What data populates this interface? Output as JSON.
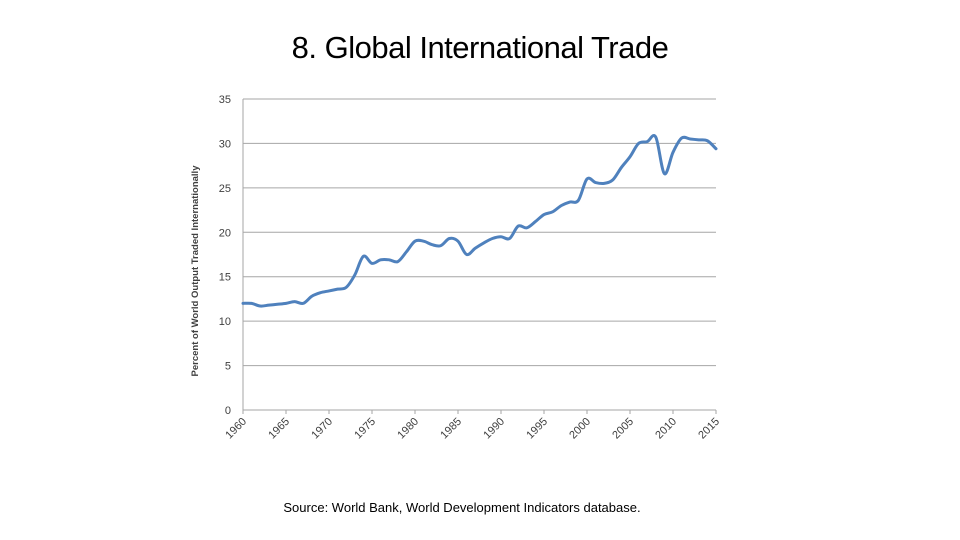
{
  "slide": {
    "title": "8. Global International Trade",
    "source": "Source: World Bank, World Development Indicators database."
  },
  "colors": {
    "line": "#4f81bd",
    "grid": "#a6a6a6"
  },
  "chart_data": {
    "type": "line",
    "ylabel": "Percent of World Output Traded Internationally",
    "xlabel": "",
    "ylim": [
      0,
      35
    ],
    "xlim": [
      1960,
      2015
    ],
    "yticks": [
      0,
      5,
      10,
      15,
      20,
      25,
      30,
      35
    ],
    "xticks": [
      "1960",
      "1965",
      "1970",
      "1975",
      "1980",
      "1985",
      "1990",
      "1995",
      "2000",
      "2005",
      "2010",
      "2015"
    ],
    "grid": true,
    "series": [
      {
        "x": [
          1960,
          1961,
          1962,
          1963,
          1964,
          1965,
          1966,
          1967,
          1968,
          1969,
          1970,
          1971,
          1972,
          1973,
          1974,
          1975,
          1976,
          1977,
          1978,
          1979,
          1980,
          1981,
          1982,
          1983,
          1984,
          1985,
          1986,
          1987,
          1988,
          1989,
          1990,
          1991,
          1992,
          1993,
          1994,
          1995,
          1996,
          1997,
          1998,
          1999,
          2000,
          2001,
          2002,
          2003,
          2004,
          2005,
          2006,
          2007,
          2008,
          2009,
          2010,
          2011,
          2012,
          2013,
          2014,
          2015
        ],
        "values": [
          12.0,
          12.0,
          11.7,
          11.8,
          11.9,
          12.0,
          12.2,
          12.0,
          12.8,
          13.2,
          13.4,
          13.6,
          13.8,
          15.2,
          17.3,
          16.5,
          16.9,
          16.9,
          16.7,
          17.8,
          19.0,
          19.0,
          18.6,
          18.5,
          19.3,
          19.0,
          17.5,
          18.2,
          18.8,
          19.3,
          19.5,
          19.3,
          20.7,
          20.5,
          21.2,
          22.0,
          22.3,
          23.0,
          23.4,
          23.6,
          26.0,
          25.6,
          25.5,
          25.9,
          27.3,
          28.5,
          30.0,
          30.2,
          30.7,
          26.6,
          29.0,
          30.6,
          30.5,
          30.4,
          30.3,
          29.4
        ]
      }
    ]
  }
}
